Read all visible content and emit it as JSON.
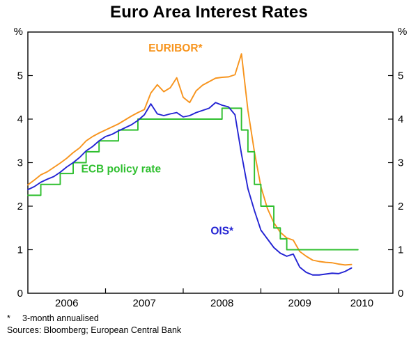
{
  "chart_data": {
    "type": "line",
    "title": "Euro Area Interest Rates",
    "unit_label": "%",
    "ylim": [
      0,
      6
    ],
    "yticks": [
      0,
      1,
      2,
      3,
      4,
      5
    ],
    "xlim": [
      2006.0,
      2010.7
    ],
    "xticks": [
      2006,
      2007,
      2008,
      2009,
      2010
    ],
    "xtick_labels": [
      "2006",
      "2007",
      "2008",
      "2009",
      "2010"
    ],
    "xtick_label_pos": [
      2006.5,
      2007.5,
      2008.5,
      2009.5,
      2010.3
    ],
    "grid": false,
    "legend": "in-plot colored series labels",
    "x_start": 2006.0,
    "x_step": 0.0833333,
    "series": [
      {
        "name": "EURIBOR*",
        "color": "#F7941D",
        "style": "line",
        "values": [
          2.49,
          2.6,
          2.72,
          2.79,
          2.89,
          2.99,
          3.1,
          3.23,
          3.34,
          3.5,
          3.6,
          3.68,
          3.75,
          3.82,
          3.89,
          3.98,
          4.07,
          4.15,
          4.22,
          4.6,
          4.79,
          4.63,
          4.72,
          4.95,
          4.5,
          4.38,
          4.65,
          4.78,
          4.86,
          4.94,
          4.96,
          4.97,
          5.02,
          5.5,
          4.2,
          3.25,
          2.45,
          1.95,
          1.62,
          1.4,
          1.27,
          1.22,
          0.96,
          0.85,
          0.76,
          0.73,
          0.71,
          0.7,
          0.67,
          0.65,
          0.66
        ]
      },
      {
        "name": "ECB policy rate",
        "color": "#2FBF2F",
        "style": "step",
        "values": [
          2.25,
          2.25,
          2.5,
          2.5,
          2.5,
          2.75,
          2.75,
          3.0,
          3.0,
          3.25,
          3.25,
          3.5,
          3.5,
          3.5,
          3.75,
          3.75,
          3.75,
          4.0,
          4.0,
          4.0,
          4.0,
          4.0,
          4.0,
          4.0,
          4.0,
          4.0,
          4.0,
          4.0,
          4.0,
          4.0,
          4.25,
          4.25,
          4.25,
          3.75,
          3.25,
          2.5,
          2.0,
          2.0,
          1.5,
          1.25,
          1.0,
          1.0,
          1.0,
          1.0,
          1.0,
          1.0,
          1.0,
          1.0,
          1.0,
          1.0,
          1.0
        ]
      },
      {
        "name": "OIS*",
        "color": "#2323D3",
        "style": "line",
        "values": [
          2.38,
          2.45,
          2.55,
          2.62,
          2.68,
          2.78,
          2.9,
          3.0,
          3.12,
          3.27,
          3.37,
          3.5,
          3.6,
          3.65,
          3.73,
          3.8,
          3.87,
          3.97,
          4.1,
          4.35,
          4.12,
          4.08,
          4.12,
          4.15,
          4.05,
          4.08,
          4.15,
          4.2,
          4.25,
          4.38,
          4.32,
          4.28,
          4.1,
          3.2,
          2.4,
          1.9,
          1.45,
          1.25,
          1.05,
          0.92,
          0.85,
          0.9,
          0.6,
          0.48,
          0.42,
          0.42,
          0.44,
          0.46,
          0.45,
          0.5,
          0.58
        ]
      }
    ],
    "annotations": [
      {
        "text": "EURIBOR*",
        "x": 2007.9,
        "y": 5.55,
        "color": "#F7941D"
      },
      {
        "text": "ECB policy rate",
        "x": 2007.2,
        "y": 2.78,
        "color": "#2FBF2F"
      },
      {
        "text": "OIS*",
        "x": 2008.5,
        "y": 1.35,
        "color": "#2323D3"
      }
    ]
  },
  "footnote": {
    "marker": "*",
    "text": "3-month annualised"
  },
  "sources": "Sources: Bloomberg; European Central Bank"
}
